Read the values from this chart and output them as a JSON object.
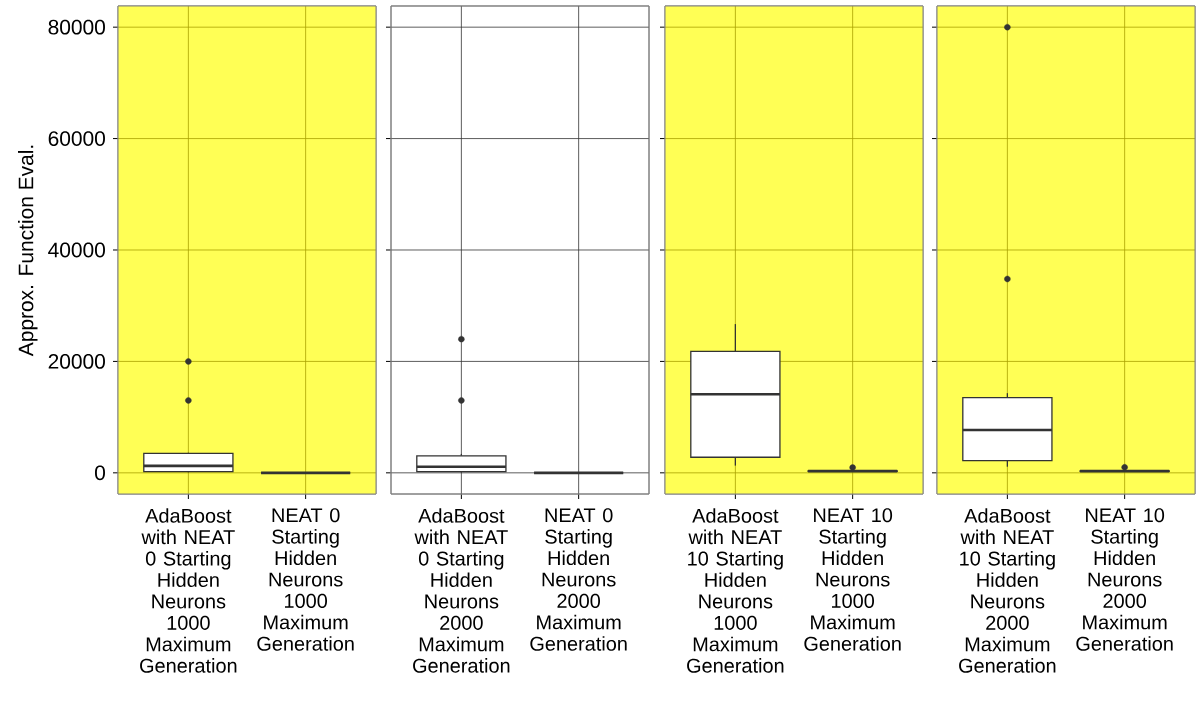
{
  "chart_data": [
    {
      "type": "box",
      "ylabel": "Approx. Function Eval.",
      "categories": [
        "AdaBoost with NEAT 0 Starting Hidden Neurons 1000 Maximum Generation",
        "NEAT 0 Starting Hidden Neurons 1000 Maximum Generation"
      ],
      "boxes": [
        {
          "low": 100,
          "q1": 200,
          "median": 1250,
          "q3": 3500,
          "high": 3600,
          "outliers": [
            20000,
            13000
          ]
        },
        {
          "low": 0,
          "q1": 0,
          "median": 0,
          "q3": 0,
          "high": 0
        }
      ],
      "ylim": [
        -3800,
        83800
      ],
      "yticks": [
        0,
        20000,
        40000,
        60000,
        80000
      ],
      "grid": true,
      "bands": [
        {
          "axis": "y",
          "from": -3800,
          "to": 83800,
          "color": "#ffff55"
        }
      ]
    },
    {
      "type": "box",
      "categories": [
        "AdaBoost with NEAT 0 Starting Hidden Neurons 2000 Maximum Generation",
        "NEAT 0 Starting Hidden Neurons 2000 Maximum Generation"
      ],
      "boxes": [
        {
          "low": 100,
          "q1": 200,
          "median": 1100,
          "q3": 3050,
          "high": 3400,
          "outliers": [
            24000,
            13000
          ]
        },
        {
          "low": 0,
          "q1": 0,
          "median": 0,
          "q3": 0,
          "high": 0
        }
      ],
      "ylim": [
        -3800,
        83800
      ],
      "yticks": [
        0,
        20000,
        40000,
        60000,
        80000
      ],
      "grid": true,
      "tick_labels": "x"
    },
    {
      "type": "box",
      "categories": [
        "AdaBoost with NEAT 10 Starting Hidden Neurons 1000 Maximum Generation",
        "NEAT 10 Starting Hidden Neurons 1000 Maximum Generation"
      ],
      "boxes": [
        {
          "low": 1300,
          "q1": 2800,
          "median": 14100,
          "q3": 21800,
          "high": 26700
        },
        {
          "low": 200,
          "q1": 250,
          "median": 300,
          "q3": 350,
          "high": 400,
          "outliers": [
            950
          ]
        }
      ],
      "ylim": [
        -3800,
        83800
      ],
      "yticks": [
        0,
        20000,
        40000,
        60000,
        80000
      ],
      "grid": true,
      "tick_labels": "x",
      "bands": [
        {
          "axis": "y",
          "from": -3800,
          "to": 83800,
          "color": "#ffff55"
        }
      ]
    },
    {
      "type": "box",
      "categories": [
        "AdaBoost with NEAT 10 Starting Hidden Neurons 2000 Maximum Generation",
        "NEAT 10 Starting Hidden Neurons 2000 Maximum Generation"
      ],
      "boxes": [
        {
          "low": 1100,
          "q1": 2200,
          "median": 7700,
          "q3": 13500,
          "high": 14300,
          "outliers": [
            80000,
            34800
          ]
        },
        {
          "low": 200,
          "q1": 250,
          "median": 300,
          "q3": 350,
          "high": 400,
          "outliers": [
            1000
          ]
        }
      ],
      "ylim": [
        -3800,
        83800
      ],
      "yticks": [
        0,
        20000,
        40000,
        60000,
        80000
      ],
      "grid": true,
      "tick_labels": "x",
      "bands": [
        {
          "axis": "y",
          "from": -3800,
          "to": 83800,
          "color": "#ffff55"
        }
      ]
    }
  ]
}
